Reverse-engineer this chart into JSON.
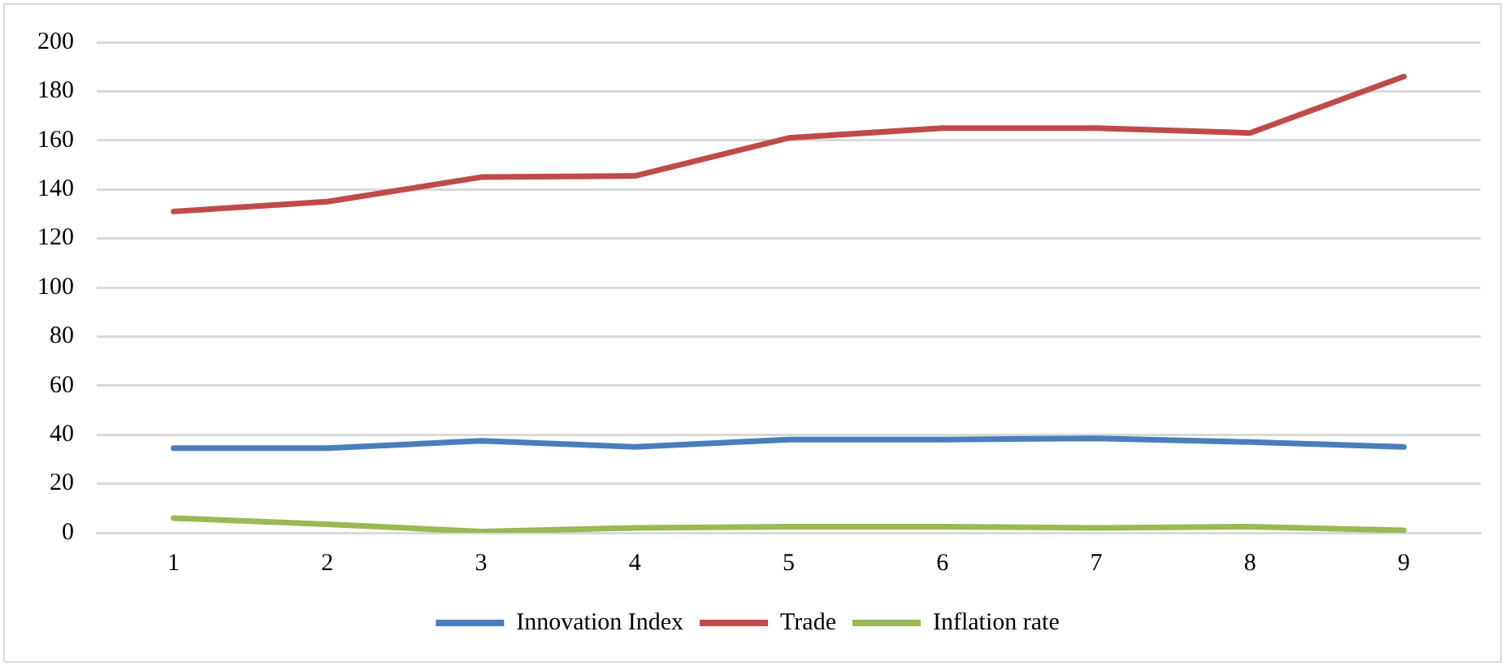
{
  "chart_data": {
    "type": "line",
    "categories": [
      "1",
      "2",
      "3",
      "4",
      "5",
      "6",
      "7",
      "8",
      "9"
    ],
    "series": [
      {
        "name": "Innovation Index",
        "color": "#4a7ebb",
        "values": [
          34.5,
          34.5,
          37.5,
          35,
          38,
          38,
          38.5,
          37,
          35
        ]
      },
      {
        "name": "Trade",
        "color": "#be4b48",
        "values": [
          131,
          135,
          145,
          145.5,
          161,
          165,
          165,
          163,
          186
        ]
      },
      {
        "name": "Inflation rate",
        "color": "#98b954",
        "values": [
          6,
          3.5,
          0.5,
          2,
          2.5,
          2.5,
          2,
          2.5,
          1
        ]
      }
    ],
    "ylim": [
      0,
      200
    ],
    "yticks": [
      0,
      20,
      40,
      60,
      80,
      100,
      120,
      140,
      160,
      180,
      200
    ],
    "grid": "y",
    "legend": "bottom",
    "marker": "none",
    "line_style": "solid"
  }
}
